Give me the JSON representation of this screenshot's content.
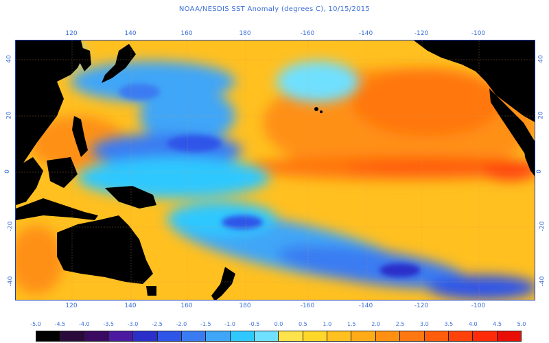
{
  "title": "NOAA/NESDIS SST Anomaly (degrees C), 10/15/2015",
  "axes": {
    "top_lon": [
      "120",
      "140",
      "160",
      "180",
      "-160",
      "-140",
      "-120",
      "-100"
    ],
    "bottom_lon": [
      "120",
      "140",
      "160",
      "180",
      "-160",
      "-140",
      "-120",
      "-100"
    ],
    "left_lat": [
      "40",
      "20",
      "0",
      "-20",
      "-40"
    ],
    "right_lat": [
      "40",
      "20",
      "0",
      "-20",
      "-40"
    ]
  },
  "legend": {
    "labels": [
      "-5.0",
      "-4.5",
      "-4.0",
      "-3.5",
      "-3.0",
      "-2.5",
      "-2.0",
      "-1.5",
      "-1.0",
      "-0.5",
      "0.0",
      "0.5",
      "1.0",
      "1.5",
      "2.0",
      "2.5",
      "3.0",
      "3.5",
      "4.0",
      "4.5",
      "5.0"
    ],
    "colors": [
      "#000000",
      "#2a0a3a",
      "#3a0a60",
      "#4b1aa0",
      "#2b2fc9",
      "#2f55e8",
      "#3b7bf2",
      "#3fa6f7",
      "#2fc8ff",
      "#6fe0ff",
      "#ffe34a",
      "#ffd62a",
      "#ffc020",
      "#ffab18",
      "#ff9012",
      "#ff7710",
      "#ff5d0c",
      "#ff420a",
      "#ff2a08",
      "#e80e05"
    ]
  },
  "colors": {
    "land": "#000000",
    "ocean_warm": "#ffc020",
    "ocean_hot": "#ff5d0c",
    "ocean_cool": "#3fa6f7",
    "ocean_cold": "#2f55e8",
    "frame": "#1b3fb5",
    "label_text": "#3c6fd8"
  }
}
